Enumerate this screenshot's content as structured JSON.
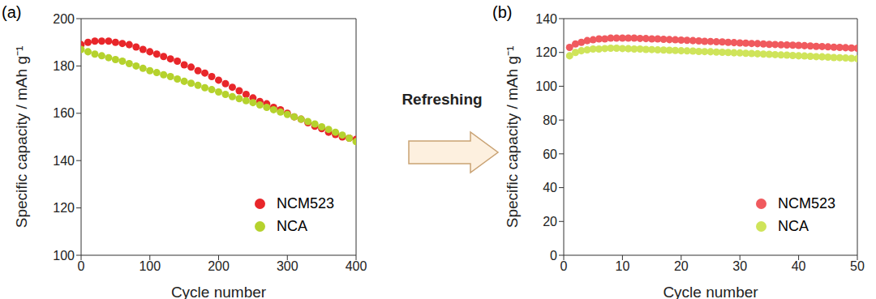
{
  "annotation": "Refreshing",
  "chart_data": [
    {
      "type": "scatter",
      "title": "(a)",
      "x_label": "Cycle number",
      "y_label": "Specific capacity / mAh g⁻¹",
      "xlim": [
        0,
        400
      ],
      "xticks": [
        0,
        100,
        200,
        300,
        400
      ],
      "ylim": [
        100,
        200
      ],
      "yticks": [
        100,
        120,
        140,
        160,
        180,
        200
      ],
      "grid": false,
      "legend": "lower right",
      "marker": "circle",
      "x": [
        0,
        10,
        20,
        30,
        40,
        50,
        60,
        70,
        80,
        90,
        100,
        110,
        120,
        130,
        140,
        150,
        160,
        170,
        180,
        190,
        200,
        210,
        220,
        230,
        240,
        250,
        260,
        270,
        280,
        290,
        300,
        310,
        320,
        330,
        340,
        350,
        360,
        370,
        380,
        390,
        400
      ],
      "series": [
        {
          "name": "NCM523",
          "color": "#e8262a",
          "values": [
            189,
            190,
            190.5,
            190.5,
            190.5,
            190,
            189.5,
            189,
            188,
            187,
            186,
            185,
            184,
            183,
            182,
            180.5,
            179.5,
            178,
            177,
            175.5,
            174,
            172.5,
            171,
            169.5,
            168,
            166.5,
            165,
            164,
            162.5,
            161.5,
            160,
            158.5,
            157.5,
            156,
            154.5,
            153.5,
            152,
            151,
            150,
            149.5,
            149
          ]
        },
        {
          "name": "NCA",
          "color": "#b5d22d",
          "values": [
            187,
            186,
            185,
            184.3,
            183.5,
            182.7,
            182,
            181,
            180,
            179,
            178,
            177.2,
            176.3,
            175.5,
            174.5,
            173.5,
            172.7,
            171.8,
            170.8,
            170,
            169,
            168,
            167,
            166.2,
            165.3,
            164.5,
            163.5,
            162.5,
            161.5,
            160.5,
            159.5,
            158.5,
            157.5,
            156.5,
            155.5,
            154.3,
            153.2,
            152,
            150.8,
            149.5,
            148
          ]
        }
      ]
    },
    {
      "type": "scatter",
      "title": "(b)",
      "x_label": "Cycle number",
      "y_label": "Specific capacity / mAh g⁻¹",
      "xlim": [
        0,
        50
      ],
      "xticks": [
        0,
        10,
        20,
        30,
        40,
        50
      ],
      "ylim": [
        0,
        140
      ],
      "yticks": [
        0,
        20,
        40,
        60,
        80,
        100,
        120,
        140
      ],
      "grid": false,
      "legend": "lower right",
      "marker": "circle",
      "x": [
        1,
        2,
        3,
        4,
        5,
        6,
        7,
        8,
        9,
        10,
        11,
        12,
        13,
        14,
        15,
        16,
        17,
        18,
        19,
        20,
        21,
        22,
        23,
        24,
        25,
        26,
        27,
        28,
        29,
        30,
        31,
        32,
        33,
        34,
        35,
        36,
        37,
        38,
        39,
        40,
        41,
        42,
        43,
        44,
        45,
        46,
        47,
        48,
        49,
        50
      ],
      "series": [
        {
          "name": "NCM523",
          "color": "#f05a5e",
          "values": [
            123,
            125,
            126,
            127,
            127.5,
            128,
            128,
            128.5,
            128.5,
            128.5,
            128.5,
            128.5,
            128.3,
            128.2,
            128,
            128,
            127.8,
            127.6,
            127.5,
            127.3,
            127.2,
            127,
            126.8,
            126.6,
            126.5,
            126.3,
            126.2,
            126,
            125.8,
            125.6,
            125.5,
            125.3,
            125.2,
            125,
            124.8,
            124.7,
            124.5,
            124.4,
            124.3,
            124.2,
            124,
            123.8,
            123.6,
            123.5,
            123.3,
            123.1,
            123,
            122.8,
            122.6,
            122.5
          ]
        },
        {
          "name": "NCA",
          "color": "#cfe45a",
          "values": [
            118,
            120,
            121,
            121.5,
            122,
            122,
            122.3,
            122.5,
            122.5,
            122.3,
            122.2,
            122,
            122,
            121.8,
            121.7,
            121.5,
            121.4,
            121.3,
            121.2,
            121,
            120.9,
            120.8,
            120.6,
            120.5,
            120.4,
            120.2,
            120.1,
            120,
            119.8,
            119.7,
            119.5,
            119.4,
            119.2,
            119,
            118.9,
            118.7,
            118.5,
            118.4,
            118.2,
            118,
            117.9,
            117.7,
            117.5,
            117.4,
            117.2,
            117,
            116.9,
            116.7,
            116.5,
            116.3
          ]
        }
      ]
    }
  ]
}
